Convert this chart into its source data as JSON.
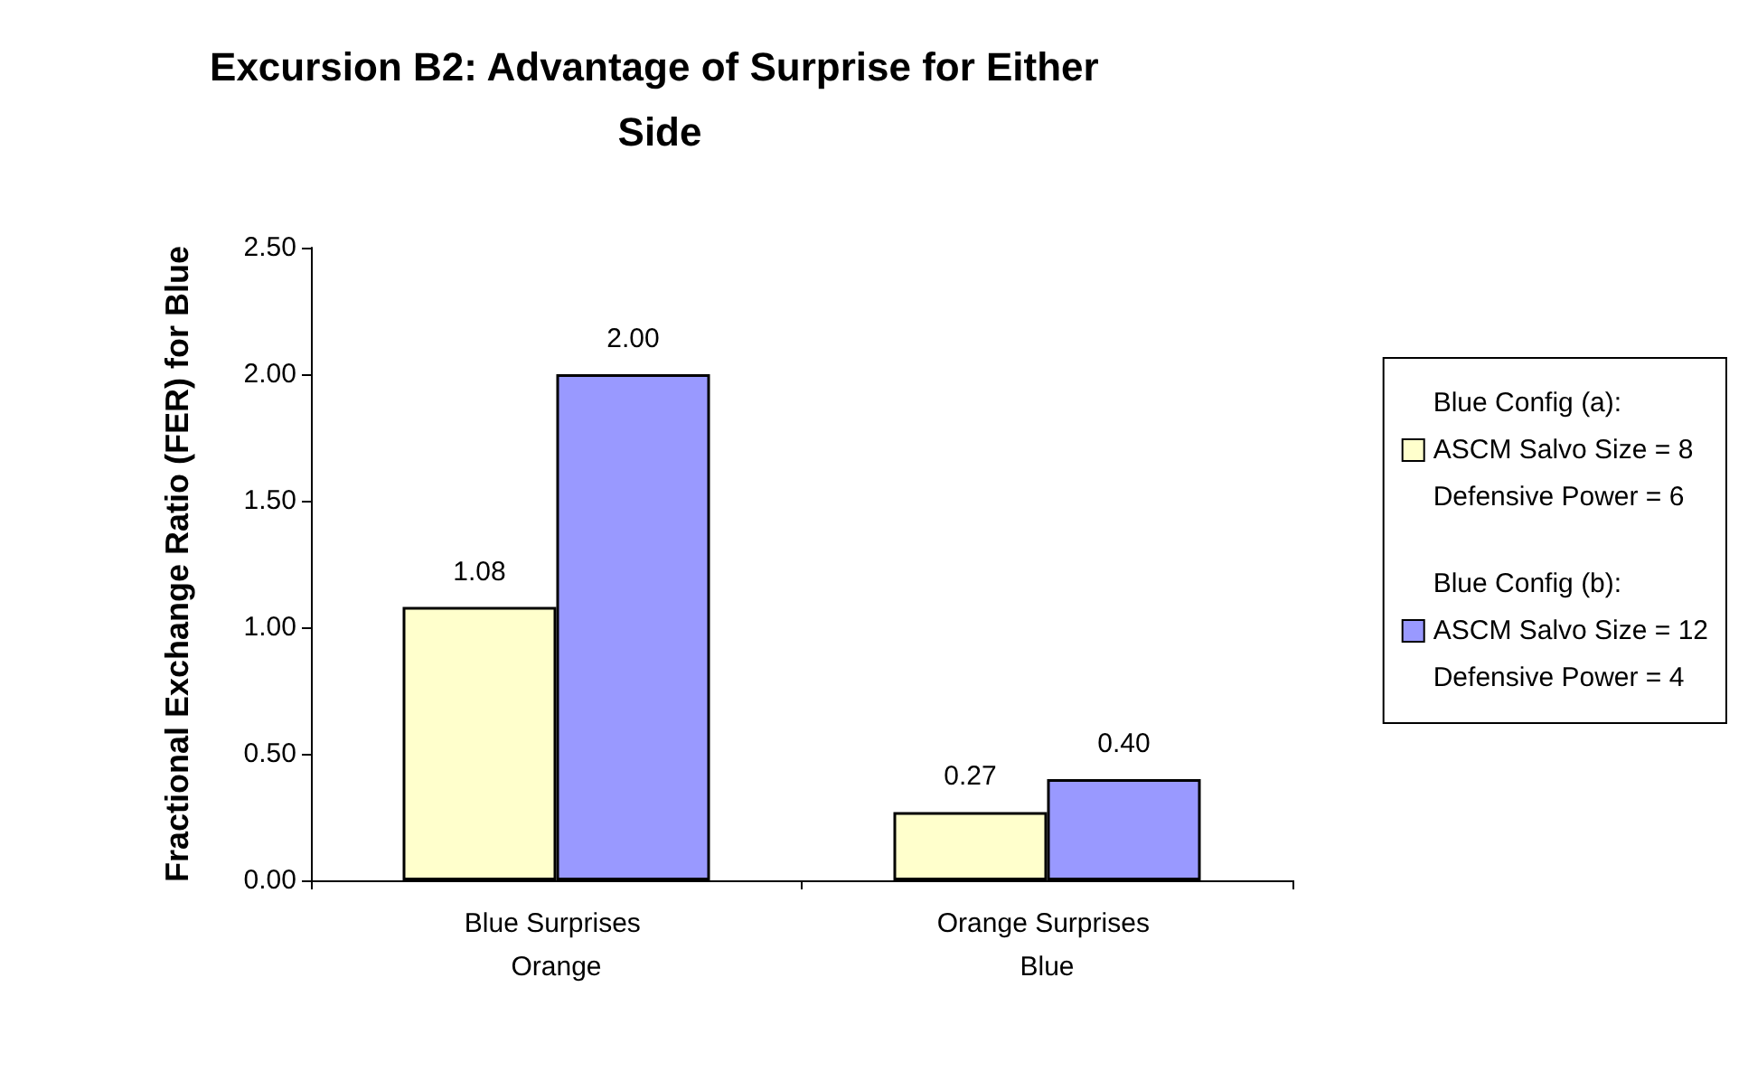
{
  "chart_data": {
    "type": "bar",
    "title": "Excursion B2: Advantage of Surprise for Either Side",
    "ylabel": "Fractional Exchange Ratio (FER) for Blue",
    "categories": [
      "Blue Surprises Orange",
      "Orange Surprises Blue"
    ],
    "series": [
      {
        "name": "Blue Config (a):\nASCM Salvo Size = 8\nDefensive Power = 6",
        "color": "#ffffcc",
        "values": [
          1.08,
          0.27
        ],
        "value_labels": [
          "1.08",
          "0.27"
        ]
      },
      {
        "name": "Blue Config (b):\nASCM Salvo Size = 12\nDefensive Power = 4",
        "color": "#9999ff",
        "values": [
          2.0,
          0.4
        ],
        "value_labels": [
          "2.00",
          "0.40"
        ]
      }
    ],
    "ylim": [
      0,
      2.5
    ],
    "yticks": [
      {
        "value": 0,
        "label": "0.00"
      },
      {
        "value": 0.5,
        "label": "0.50"
      },
      {
        "value": 1,
        "label": "1.00"
      },
      {
        "value": 1.5,
        "label": "1.50"
      },
      {
        "value": 2,
        "label": "2.00"
      },
      {
        "value": 2.5,
        "label": "2.50"
      }
    ],
    "grid": false,
    "legend": "right"
  }
}
